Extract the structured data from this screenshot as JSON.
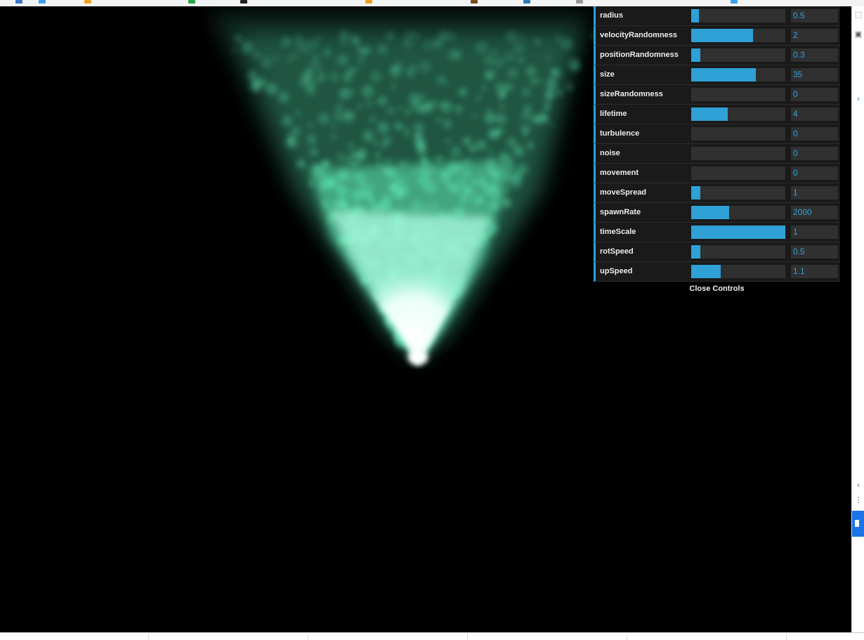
{
  "gui": {
    "controllers": [
      {
        "label": "radius",
        "value": "0.5",
        "fill": 0.08
      },
      {
        "label": "velocityRandomness",
        "value": "2",
        "fill": 0.66
      },
      {
        "label": "positionRandomness",
        "value": "0.3",
        "fill": 0.1
      },
      {
        "label": "size",
        "value": "35",
        "fill": 0.69
      },
      {
        "label": "sizeRandomness",
        "value": "0",
        "fill": 0
      },
      {
        "label": "lifetime",
        "value": "4",
        "fill": 0.39
      },
      {
        "label": "turbulence",
        "value": "0",
        "fill": 0
      },
      {
        "label": "noise",
        "value": "0",
        "fill": 0
      },
      {
        "label": "movement",
        "value": "0",
        "fill": 0
      },
      {
        "label": "moveSpread",
        "value": "1",
        "fill": 0.1
      },
      {
        "label": "spawnRate",
        "value": "2000",
        "fill": 0.4
      },
      {
        "label": "timeScale",
        "value": "1",
        "fill": 1
      },
      {
        "label": "rotSpeed",
        "value": "0.5",
        "fill": 0.1
      },
      {
        "label": "upSpeed",
        "value": "1.1",
        "fill": 0.31
      }
    ],
    "close_label": "Close Controls"
  },
  "colors": {
    "accent": "#2fa1d6",
    "particle": "#5fe8b5",
    "particle_core": "#ffffff",
    "background": "#000000"
  },
  "icons": {
    "devtools_top": "cursor-select-icon",
    "devtools_second": "device-toggle-icon",
    "devtools_arrow": "chevron-right-icon",
    "devtools_left_arrow": "chevron-left-icon",
    "devtools_menu": "more-vert-icon"
  }
}
